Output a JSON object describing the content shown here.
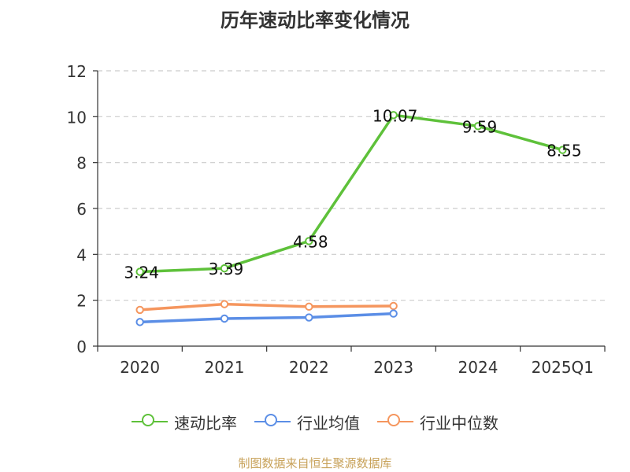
{
  "chart_data": {
    "type": "line",
    "title": "历年速动比率变化情况",
    "categories": [
      "2020",
      "2021",
      "2022",
      "2023",
      "2024",
      "2025Q1"
    ],
    "y_ticks": [
      "0",
      "2",
      "4",
      "6",
      "8",
      "10",
      "12"
    ],
    "ylim": [
      0,
      12
    ],
    "grid": true,
    "legend_position": "bottom",
    "series": [
      {
        "name": "速动比率",
        "color": "#5ec13a",
        "values": [
          3.24,
          3.39,
          4.58,
          10.07,
          9.59,
          8.55
        ],
        "labels": [
          "3.24",
          "3.39",
          "4.58",
          "10.07",
          "9.59",
          "8.55"
        ],
        "show_labels": true,
        "show_markers": true
      },
      {
        "name": "行业均值",
        "color": "#5b8ee6",
        "values": [
          1.05,
          1.2,
          1.25,
          1.42,
          null,
          null
        ],
        "show_labels": false,
        "show_markers": true
      },
      {
        "name": "行业中位数",
        "color": "#f5965e",
        "values": [
          1.58,
          1.83,
          1.72,
          1.75,
          null,
          null
        ],
        "show_labels": false,
        "show_markers": true
      }
    ]
  },
  "footer": {
    "source": "制图数据来自恒生聚源数据库"
  }
}
